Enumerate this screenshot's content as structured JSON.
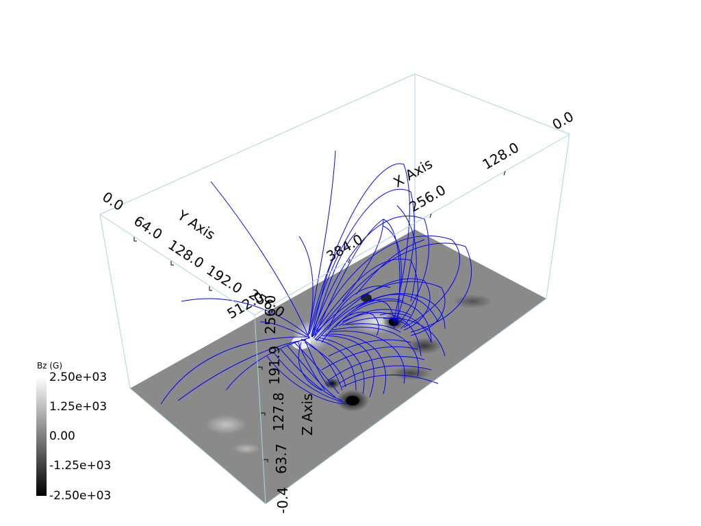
{
  "axes": {
    "x": {
      "title": "X Axis",
      "ticks": [
        "0.0",
        "128.0",
        "256.0",
        "384.0",
        "512.0"
      ]
    },
    "y": {
      "title": "Y Axis",
      "ticks": [
        "0.0",
        "64.0",
        "128.0",
        "192.0",
        "256.0"
      ]
    },
    "z": {
      "title": "Z Axis",
      "ticks": [
        "-0.4",
        "63.7",
        "127.8",
        "191.9",
        "256.0"
      ]
    }
  },
  "colorbar": {
    "title": "Bz (G)",
    "labels": [
      "2.50e+03",
      "1.25e+03",
      "0.00",
      "-1.25e+03",
      "-2.50e+03"
    ],
    "range": [
      -2500,
      2500
    ]
  },
  "colors": {
    "field_lines": "#0000ff",
    "bounding_box": "#a9d4e4",
    "magnetogram_base": "#8a8a8a"
  }
}
